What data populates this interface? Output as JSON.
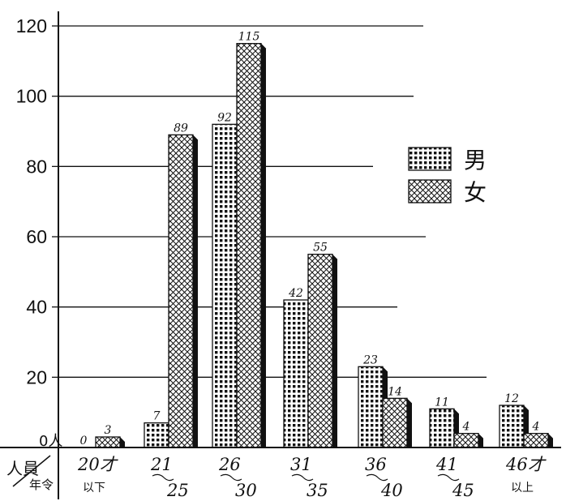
{
  "chart_data": {
    "type": "bar",
    "ylim": [
      0,
      120
    ],
    "y_ticks": [
      "120",
      "100",
      "80",
      "60",
      "40",
      "20"
    ],
    "zero_label": "0人",
    "axis_corner": {
      "top": "人員",
      "bottom": "年令"
    },
    "categories": [
      {
        "top": "20才",
        "bottom": "以下"
      },
      {
        "top": "21",
        "bottom": "25"
      },
      {
        "top": "26",
        "bottom": "30"
      },
      {
        "top": "31",
        "bottom": "35"
      },
      {
        "top": "36",
        "bottom": "40"
      },
      {
        "top": "41",
        "bottom": "45"
      },
      {
        "top": "46才",
        "bottom": "以上"
      }
    ],
    "series": [
      {
        "name": "男",
        "values": [
          0,
          7,
          92,
          42,
          23,
          11,
          12
        ],
        "pattern": "grid"
      },
      {
        "name": "女",
        "values": [
          3,
          89,
          115,
          55,
          14,
          4,
          4
        ],
        "pattern": "crosshatch"
      }
    ],
    "legend_position": "upper-right",
    "grid": true
  }
}
